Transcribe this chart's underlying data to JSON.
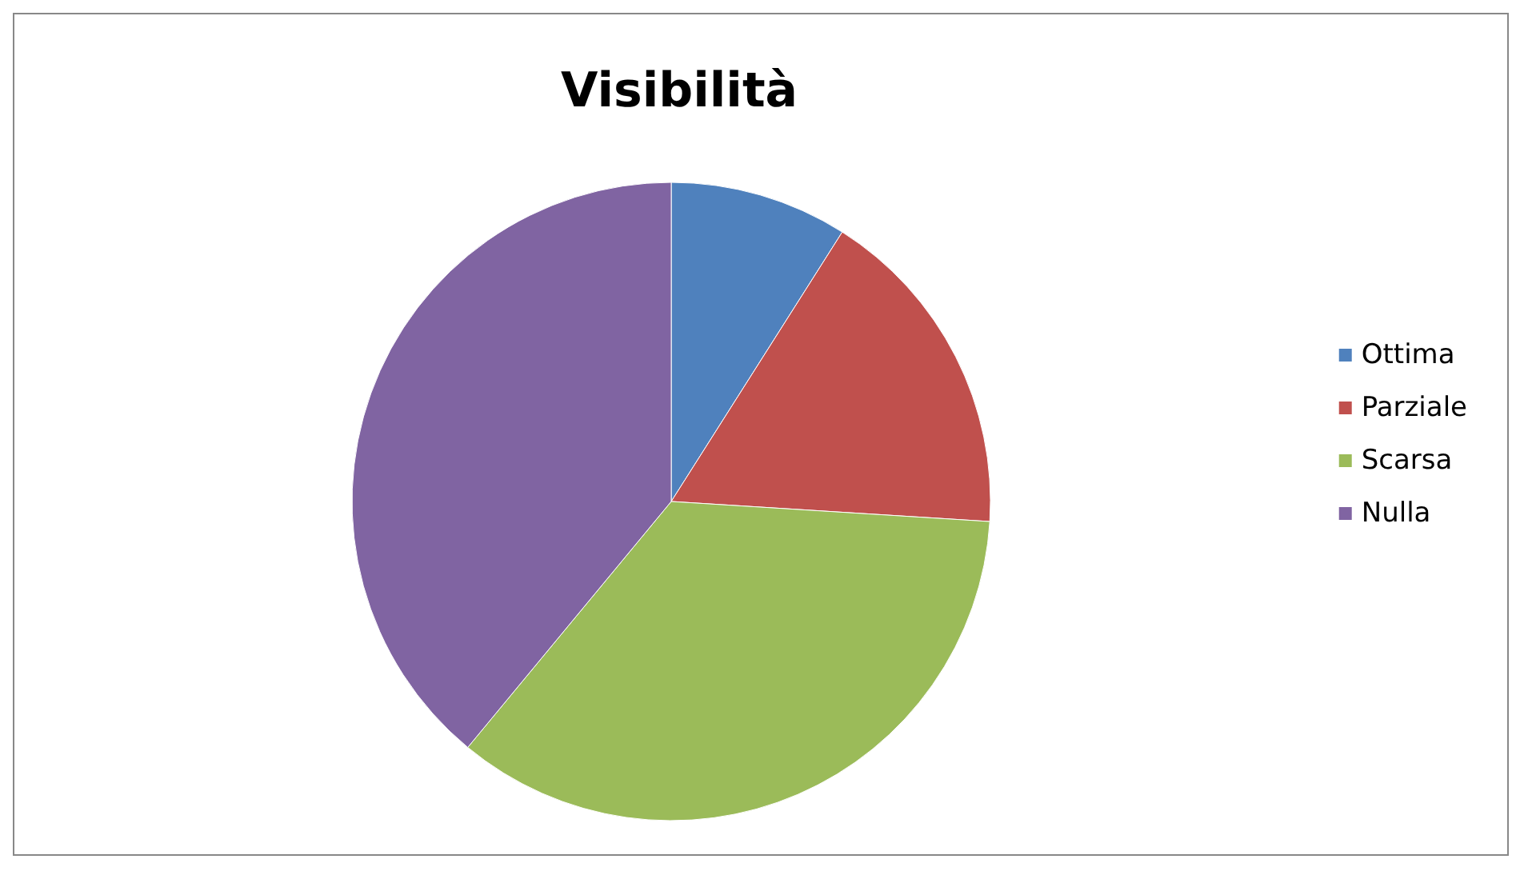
{
  "chart_data": {
    "type": "pie",
    "title": "Visibilità",
    "categories": [
      "Ottima",
      "Parziale",
      "Scarsa",
      "Nulla"
    ],
    "values": [
      9,
      17,
      35,
      39
    ],
    "colors": [
      "#4f81bd",
      "#c0504d",
      "#9bbb59",
      "#8064a2"
    ],
    "legend": "right"
  }
}
